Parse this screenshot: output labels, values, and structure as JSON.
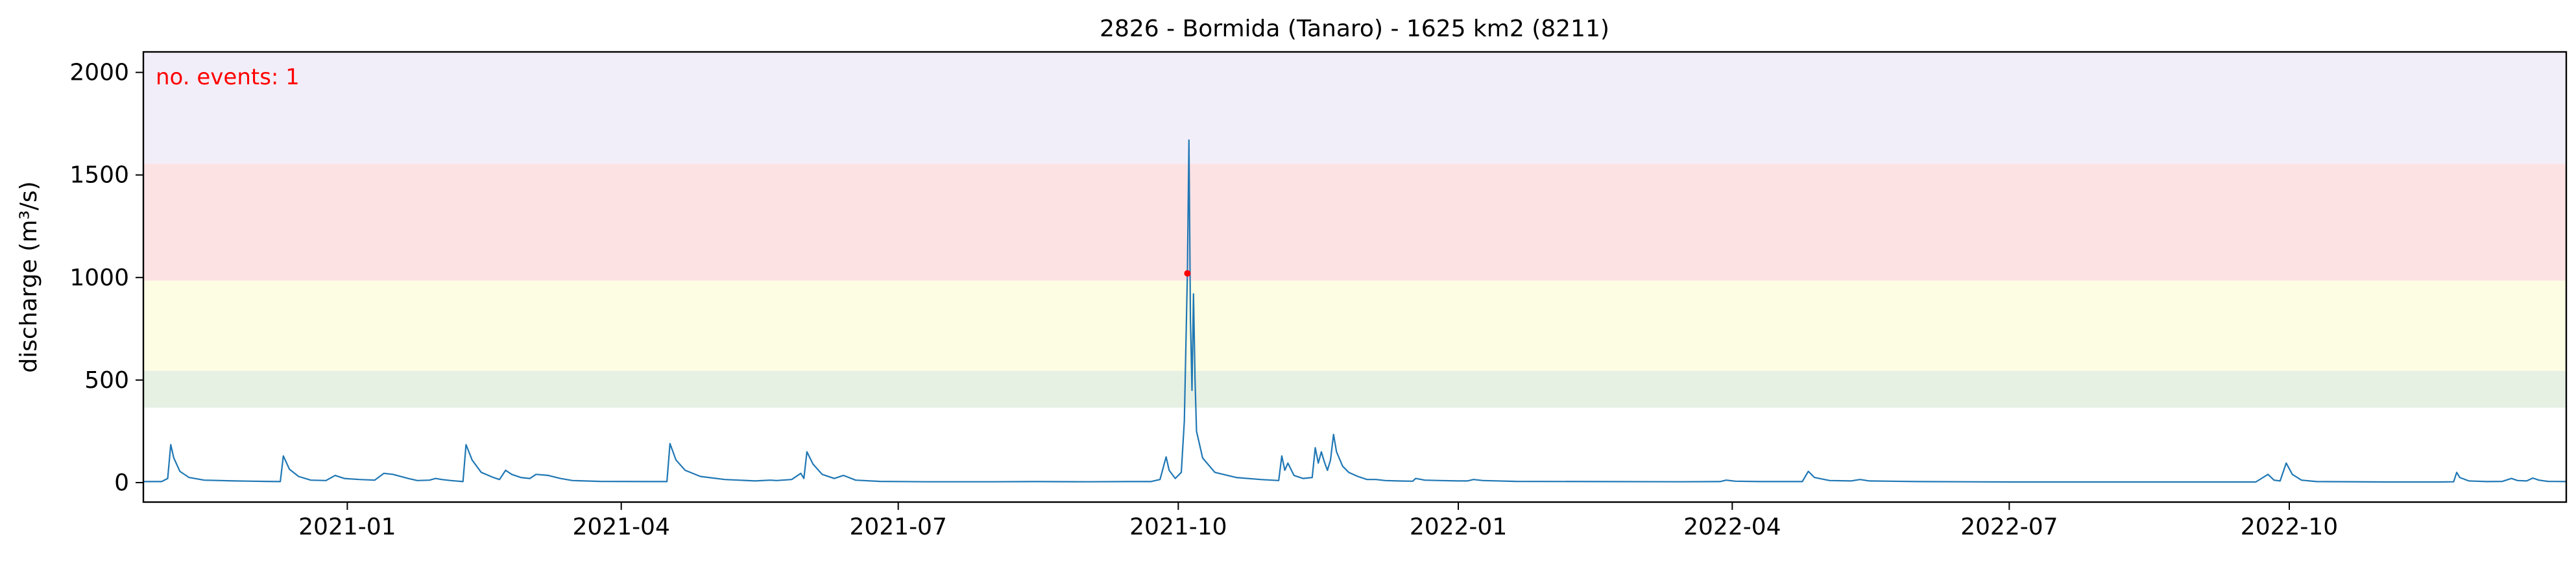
{
  "chart_data": {
    "type": "line",
    "title": "2826 - Bormida (Tanaro) - 1625 km2 (8211)",
    "xlabel": "",
    "ylabel": "discharge (m³/s)",
    "annotation": "no. events: 1",
    "x_range": [
      "2020-10-26",
      "2022-12-31"
    ],
    "ylim": [
      -95,
      2100
    ],
    "yticks": [
      0,
      500,
      1000,
      1500,
      2000
    ],
    "xticks": [
      {
        "date": "2021-01-01",
        "label": "2021-01"
      },
      {
        "date": "2021-04-01",
        "label": "2021-04"
      },
      {
        "date": "2021-07-01",
        "label": "2021-07"
      },
      {
        "date": "2021-10-01",
        "label": "2021-10"
      },
      {
        "date": "2022-01-01",
        "label": "2022-01"
      },
      {
        "date": "2022-04-01",
        "label": "2022-04"
      },
      {
        "date": "2022-07-01",
        "label": "2022-07"
      },
      {
        "date": "2022-10-01",
        "label": "2022-10"
      }
    ],
    "threshold_bands": [
      {
        "from": 365,
        "to": 545,
        "color": "#e6f0e3"
      },
      {
        "from": 545,
        "to": 985,
        "color": "#fdfde3"
      },
      {
        "from": 985,
        "to": 1555,
        "color": "#fde2e4"
      },
      {
        "from": 1555,
        "to": 2100,
        "color": "#f2eef9"
      }
    ],
    "line_color": "#1f77b4",
    "event_color": "#ff0000",
    "events": [
      {
        "date": "2021-10-04",
        "value": 1020
      }
    ],
    "series": [
      {
        "points": [
          [
            "2020-10-26",
            5
          ],
          [
            "2020-11-01",
            5
          ],
          [
            "2020-11-03",
            20
          ],
          [
            "2020-11-04",
            185
          ],
          [
            "2020-11-05",
            120
          ],
          [
            "2020-11-07",
            55
          ],
          [
            "2020-11-10",
            25
          ],
          [
            "2020-11-15",
            12
          ],
          [
            "2020-11-25",
            8
          ],
          [
            "2020-12-05",
            6
          ],
          [
            "2020-12-10",
            5
          ],
          [
            "2020-12-11",
            130
          ],
          [
            "2020-12-13",
            65
          ],
          [
            "2020-12-16",
            30
          ],
          [
            "2020-12-20",
            12
          ],
          [
            "2020-12-25",
            10
          ],
          [
            "2020-12-28",
            35
          ],
          [
            "2020-12-31",
            20
          ],
          [
            "2021-01-05",
            15
          ],
          [
            "2021-01-10",
            12
          ],
          [
            "2021-01-13",
            45
          ],
          [
            "2021-01-16",
            40
          ],
          [
            "2021-01-21",
            20
          ],
          [
            "2021-01-24",
            10
          ],
          [
            "2021-01-28",
            12
          ],
          [
            "2021-01-30",
            20
          ],
          [
            "2021-02-01",
            15
          ],
          [
            "2021-02-04",
            10
          ],
          [
            "2021-02-08",
            5
          ],
          [
            "2021-02-09",
            185
          ],
          [
            "2021-02-11",
            110
          ],
          [
            "2021-02-14",
            50
          ],
          [
            "2021-02-18",
            25
          ],
          [
            "2021-02-20",
            15
          ],
          [
            "2021-02-22",
            60
          ],
          [
            "2021-02-24",
            40
          ],
          [
            "2021-02-27",
            25
          ],
          [
            "2021-03-02",
            20
          ],
          [
            "2021-03-04",
            40
          ],
          [
            "2021-03-08",
            35
          ],
          [
            "2021-03-12",
            20
          ],
          [
            "2021-03-16",
            10
          ],
          [
            "2021-03-25",
            6
          ],
          [
            "2021-04-10",
            5
          ],
          [
            "2021-04-16",
            5
          ],
          [
            "2021-04-17",
            190
          ],
          [
            "2021-04-19",
            110
          ],
          [
            "2021-04-22",
            60
          ],
          [
            "2021-04-27",
            30
          ],
          [
            "2021-05-05",
            15
          ],
          [
            "2021-05-15",
            8
          ],
          [
            "2021-05-20",
            12
          ],
          [
            "2021-05-22",
            10
          ],
          [
            "2021-05-27",
            15
          ],
          [
            "2021-05-30",
            45
          ],
          [
            "2021-05-31",
            20
          ],
          [
            "2021-06-01",
            150
          ],
          [
            "2021-06-03",
            90
          ],
          [
            "2021-06-06",
            40
          ],
          [
            "2021-06-10",
            20
          ],
          [
            "2021-06-13",
            35
          ],
          [
            "2021-06-17",
            12
          ],
          [
            "2021-06-25",
            6
          ],
          [
            "2021-07-10",
            4
          ],
          [
            "2021-08-01",
            4
          ],
          [
            "2021-08-15",
            5
          ],
          [
            "2021-09-01",
            4
          ],
          [
            "2021-09-15",
            5
          ],
          [
            "2021-09-22",
            5
          ],
          [
            "2021-09-25",
            15
          ],
          [
            "2021-09-27",
            125
          ],
          [
            "2021-09-28",
            60
          ],
          [
            "2021-09-30",
            20
          ],
          [
            "2021-10-02",
            50
          ],
          [
            "2021-10-03",
            300
          ],
          [
            "2021-10-04",
            1020
          ],
          [
            "2021-10-04T12:00",
            1670
          ],
          [
            "2021-10-05",
            800
          ],
          [
            "2021-10-05T12:00",
            450
          ],
          [
            "2021-10-06",
            920
          ],
          [
            "2021-10-06T12:00",
            500
          ],
          [
            "2021-10-07",
            250
          ],
          [
            "2021-10-09",
            120
          ],
          [
            "2021-10-13",
            50
          ],
          [
            "2021-10-20",
            25
          ],
          [
            "2021-10-28",
            15
          ],
          [
            "2021-11-03",
            10
          ],
          [
            "2021-11-04",
            130
          ],
          [
            "2021-11-05",
            60
          ],
          [
            "2021-11-06",
            95
          ],
          [
            "2021-11-08",
            35
          ],
          [
            "2021-11-11",
            20
          ],
          [
            "2021-11-14",
            25
          ],
          [
            "2021-11-15",
            170
          ],
          [
            "2021-11-16",
            95
          ],
          [
            "2021-11-17",
            150
          ],
          [
            "2021-11-18",
            100
          ],
          [
            "2021-11-19",
            60
          ],
          [
            "2021-11-20",
            110
          ],
          [
            "2021-11-21",
            235
          ],
          [
            "2021-11-22",
            150
          ],
          [
            "2021-11-24",
            80
          ],
          [
            "2021-11-26",
            50
          ],
          [
            "2021-11-29",
            30
          ],
          [
            "2021-12-02",
            15
          ],
          [
            "2021-12-05",
            15
          ],
          [
            "2021-12-08",
            10
          ],
          [
            "2021-12-12",
            8
          ],
          [
            "2021-12-17",
            7
          ],
          [
            "2021-12-18",
            20
          ],
          [
            "2021-12-21",
            12
          ],
          [
            "2021-12-26",
            10
          ],
          [
            "2022-01-01",
            8
          ],
          [
            "2022-01-04",
            8
          ],
          [
            "2022-01-06",
            15
          ],
          [
            "2022-01-09",
            10
          ],
          [
            "2022-01-20",
            6
          ],
          [
            "2022-02-15",
            5
          ],
          [
            "2022-03-15",
            4
          ],
          [
            "2022-03-28",
            5
          ],
          [
            "2022-03-30",
            12
          ],
          [
            "2022-04-02",
            7
          ],
          [
            "2022-04-10",
            5
          ],
          [
            "2022-04-24",
            5
          ],
          [
            "2022-04-26",
            55
          ],
          [
            "2022-04-28",
            25
          ],
          [
            "2022-05-03",
            10
          ],
          [
            "2022-05-10",
            8
          ],
          [
            "2022-05-13",
            15
          ],
          [
            "2022-05-16",
            8
          ],
          [
            "2022-06-01",
            5
          ],
          [
            "2022-07-01",
            3
          ],
          [
            "2022-08-01",
            3
          ],
          [
            "2022-09-01",
            3
          ],
          [
            "2022-09-20",
            3
          ],
          [
            "2022-09-24",
            40
          ],
          [
            "2022-09-26",
            12
          ],
          [
            "2022-09-28",
            8
          ],
          [
            "2022-09-30",
            95
          ],
          [
            "2022-10-02",
            40
          ],
          [
            "2022-10-05",
            12
          ],
          [
            "2022-10-10",
            5
          ],
          [
            "2022-11-01",
            3
          ],
          [
            "2022-11-20",
            3
          ],
          [
            "2022-11-24",
            4
          ],
          [
            "2022-11-25",
            50
          ],
          [
            "2022-11-26",
            25
          ],
          [
            "2022-11-29",
            8
          ],
          [
            "2022-12-05",
            5
          ],
          [
            "2022-12-10",
            6
          ],
          [
            "2022-12-13",
            20
          ],
          [
            "2022-12-15",
            10
          ],
          [
            "2022-12-18",
            8
          ],
          [
            "2022-12-20",
            22
          ],
          [
            "2022-12-22",
            12
          ],
          [
            "2022-12-25",
            6
          ],
          [
            "2022-12-31",
            5
          ]
        ]
      }
    ]
  }
}
